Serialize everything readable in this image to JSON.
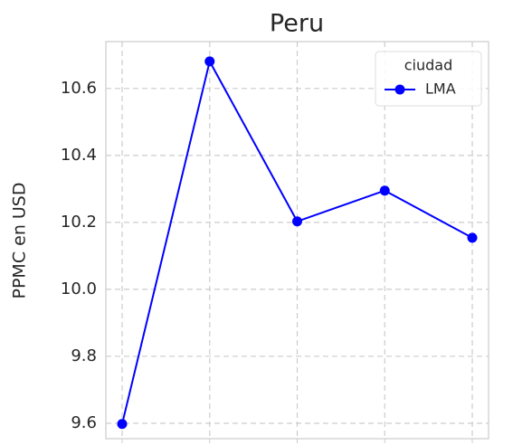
{
  "chart_data": {
    "type": "line",
    "title": "Peru",
    "ylabel": "PPMC en USD",
    "categories": [
      null,
      null,
      null,
      null,
      null
    ],
    "series": [
      {
        "name": "LMA",
        "color": "#0000ff",
        "values": [
          9.598,
          10.681,
          10.203,
          10.295,
          10.154
        ]
      }
    ],
    "ylim": [
      9.554,
      10.74
    ],
    "yticks": [
      {
        "value": 9.6,
        "label": "9.6"
      },
      {
        "value": 9.8,
        "label": "9.8"
      },
      {
        "value": 10.0,
        "label": "10.0"
      },
      {
        "value": 10.2,
        "label": "10.2"
      },
      {
        "value": 10.4,
        "label": "10.4"
      },
      {
        "value": 10.6,
        "label": "10.6"
      }
    ],
    "grid": true,
    "legend_title": "ciudad",
    "legend": "upper right"
  }
}
